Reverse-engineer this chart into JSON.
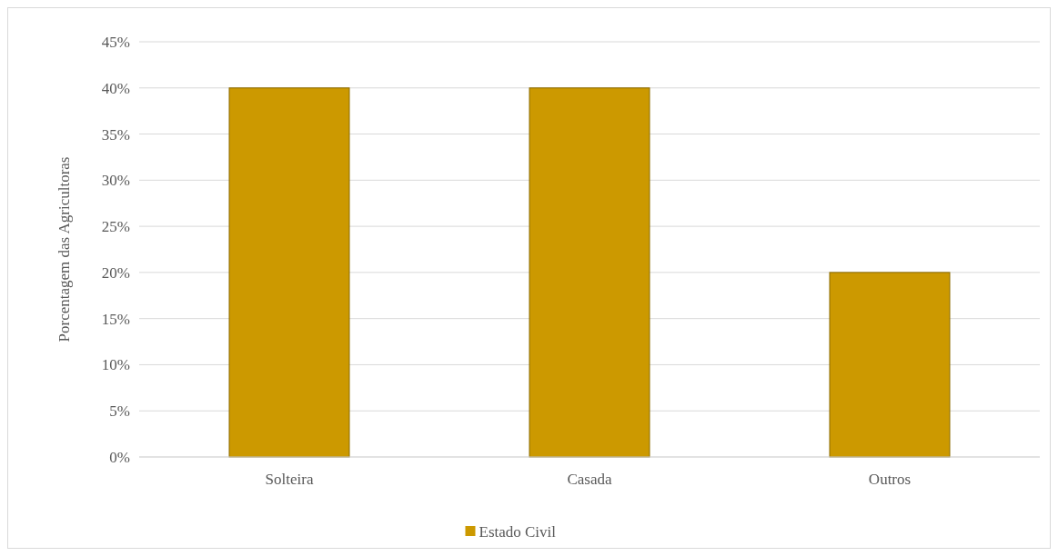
{
  "chart_data": {
    "type": "bar",
    "ylabel": "Porcentagem das Agricultoras",
    "categories": [
      "Solteira",
      "Casada",
      "Outros"
    ],
    "series": [
      {
        "name": "Estado Civil",
        "color": "#cc9900",
        "values": [
          40,
          40,
          20
        ]
      }
    ],
    "ylim": [
      0,
      45
    ],
    "yticks": [
      {
        "value": 0,
        "label": "0%"
      },
      {
        "value": 5,
        "label": "5%"
      },
      {
        "value": 10,
        "label": "10%"
      },
      {
        "value": 15,
        "label": "15%"
      },
      {
        "value": 20,
        "label": "20%"
      },
      {
        "value": 25,
        "label": "25%"
      },
      {
        "value": 30,
        "label": "30%"
      },
      {
        "value": 35,
        "label": "35%"
      },
      {
        "value": 40,
        "label": "40%"
      },
      {
        "value": 45,
        "label": "45%"
      }
    ],
    "grid": "y",
    "legend": "bottom"
  }
}
